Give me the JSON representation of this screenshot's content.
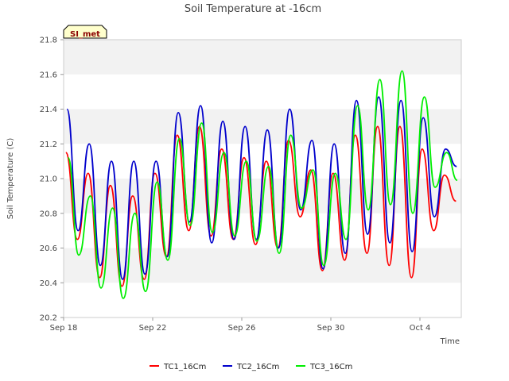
{
  "chart_data": {
    "type": "line",
    "title": "Soil Temperature at -16cm",
    "xlabel": "Time",
    "ylabel": "Soil Temperature (C)",
    "badge": "SI_met",
    "x_axis": {
      "type": "date",
      "start": "2023-09-18",
      "end": "2023-10-07",
      "ticks": [
        "Sep 18",
        "Sep 22",
        "Sep 26",
        "Sep 30",
        "Oct 4"
      ],
      "tick_days": [
        0,
        4,
        8,
        12,
        16
      ]
    },
    "ylim": [
      20.2,
      21.8
    ],
    "yticks": [
      "20.2",
      "20.4",
      "20.6",
      "20.8",
      "21.0",
      "21.2",
      "21.4",
      "21.6",
      "21.8"
    ],
    "grid": "horizontal bands",
    "legend_position": "bottom",
    "series": [
      {
        "name": "TC1_16Cm",
        "color": "#ff0000",
        "points": [
          [
            "2023-09-18",
            21.15
          ],
          [
            "2023-09-18",
            20.65
          ],
          [
            "2023-09-19",
            21.03
          ],
          [
            "2023-09-19",
            20.43
          ],
          [
            "2023-09-20",
            20.96
          ],
          [
            "2023-09-20",
            20.38
          ],
          [
            "2023-09-21",
            20.9
          ],
          [
            "2023-09-21",
            20.42
          ],
          [
            "2023-09-22",
            21.03
          ],
          [
            "2023-09-22",
            20.55
          ],
          [
            "2023-09-23",
            21.25
          ],
          [
            "2023-09-23",
            20.7
          ],
          [
            "2023-09-24",
            21.3
          ],
          [
            "2023-09-24",
            20.67
          ],
          [
            "2023-09-25",
            21.17
          ],
          [
            "2023-09-25",
            20.65
          ],
          [
            "2023-09-26",
            21.12
          ],
          [
            "2023-09-26",
            20.62
          ],
          [
            "2023-09-27",
            21.1
          ],
          [
            "2023-09-27",
            20.6
          ],
          [
            "2023-09-28",
            21.22
          ],
          [
            "2023-09-28",
            20.78
          ],
          [
            "2023-09-29",
            21.05
          ],
          [
            "2023-09-29",
            20.47
          ],
          [
            "2023-09-30",
            21.03
          ],
          [
            "2023-09-30",
            20.53
          ],
          [
            "2023-10-01",
            21.25
          ],
          [
            "2023-10-01",
            20.57
          ],
          [
            "2023-10-02",
            21.3
          ],
          [
            "2023-10-02",
            20.5
          ],
          [
            "2023-10-03",
            21.3
          ],
          [
            "2023-10-03",
            20.43
          ],
          [
            "2023-10-04",
            21.17
          ],
          [
            "2023-10-04",
            20.7
          ],
          [
            "2023-10-05",
            21.02
          ],
          [
            "2023-10-05",
            20.87
          ]
        ]
      },
      {
        "name": "TC2_16Cm",
        "color": "#0000cc",
        "points": [
          [
            "2023-09-18",
            21.4
          ],
          [
            "2023-09-18",
            20.7
          ],
          [
            "2023-09-19",
            21.2
          ],
          [
            "2023-09-19",
            20.5
          ],
          [
            "2023-09-20",
            21.1
          ],
          [
            "2023-09-20",
            20.42
          ],
          [
            "2023-09-21",
            21.1
          ],
          [
            "2023-09-21",
            20.45
          ],
          [
            "2023-09-22",
            21.1
          ],
          [
            "2023-09-22",
            20.55
          ],
          [
            "2023-09-23",
            21.38
          ],
          [
            "2023-09-23",
            20.75
          ],
          [
            "2023-09-24",
            21.42
          ],
          [
            "2023-09-24",
            20.63
          ],
          [
            "2023-09-25",
            21.33
          ],
          [
            "2023-09-25",
            20.65
          ],
          [
            "2023-09-26",
            21.3
          ],
          [
            "2023-09-26",
            20.65
          ],
          [
            "2023-09-27",
            21.28
          ],
          [
            "2023-09-27",
            20.6
          ],
          [
            "2023-09-28",
            21.4
          ],
          [
            "2023-09-28",
            20.82
          ],
          [
            "2023-09-29",
            21.22
          ],
          [
            "2023-09-29",
            20.48
          ],
          [
            "2023-09-30",
            21.2
          ],
          [
            "2023-09-30",
            20.57
          ],
          [
            "2023-10-01",
            21.45
          ],
          [
            "2023-10-01",
            20.68
          ],
          [
            "2023-10-02",
            21.47
          ],
          [
            "2023-10-02",
            20.63
          ],
          [
            "2023-10-03",
            21.45
          ],
          [
            "2023-10-03",
            20.58
          ],
          [
            "2023-10-04",
            21.35
          ],
          [
            "2023-10-04",
            20.78
          ],
          [
            "2023-10-05",
            21.17
          ],
          [
            "2023-10-05",
            21.07
          ]
        ]
      },
      {
        "name": "TC3_16Cm",
        "color": "#00ee00",
        "points": [
          [
            "2023-09-18",
            21.12
          ],
          [
            "2023-09-18",
            20.56
          ],
          [
            "2023-09-19",
            20.9
          ],
          [
            "2023-09-19",
            20.37
          ],
          [
            "2023-09-20",
            20.83
          ],
          [
            "2023-09-20",
            20.31
          ],
          [
            "2023-09-21",
            20.8
          ],
          [
            "2023-09-21",
            20.35
          ],
          [
            "2023-09-22",
            20.98
          ],
          [
            "2023-09-22",
            20.53
          ],
          [
            "2023-09-23",
            21.23
          ],
          [
            "2023-09-23",
            20.73
          ],
          [
            "2023-09-24",
            21.32
          ],
          [
            "2023-09-24",
            20.69
          ],
          [
            "2023-09-25",
            21.15
          ],
          [
            "2023-09-25",
            20.67
          ],
          [
            "2023-09-26",
            21.1
          ],
          [
            "2023-09-26",
            20.64
          ],
          [
            "2023-09-27",
            21.07
          ],
          [
            "2023-09-27",
            20.57
          ],
          [
            "2023-09-28",
            21.25
          ],
          [
            "2023-09-28",
            20.83
          ],
          [
            "2023-09-29",
            21.05
          ],
          [
            "2023-09-29",
            20.5
          ],
          [
            "2023-09-30",
            21.03
          ],
          [
            "2023-09-30",
            20.65
          ],
          [
            "2023-10-01",
            21.42
          ],
          [
            "2023-10-01",
            20.82
          ],
          [
            "2023-10-02",
            21.57
          ],
          [
            "2023-10-02",
            20.85
          ],
          [
            "2023-10-03",
            21.62
          ],
          [
            "2023-10-03",
            20.8
          ],
          [
            "2023-10-04",
            21.47
          ],
          [
            "2023-10-04",
            20.95
          ],
          [
            "2023-10-05",
            21.15
          ],
          [
            "2023-10-05",
            20.99
          ]
        ]
      }
    ]
  }
}
